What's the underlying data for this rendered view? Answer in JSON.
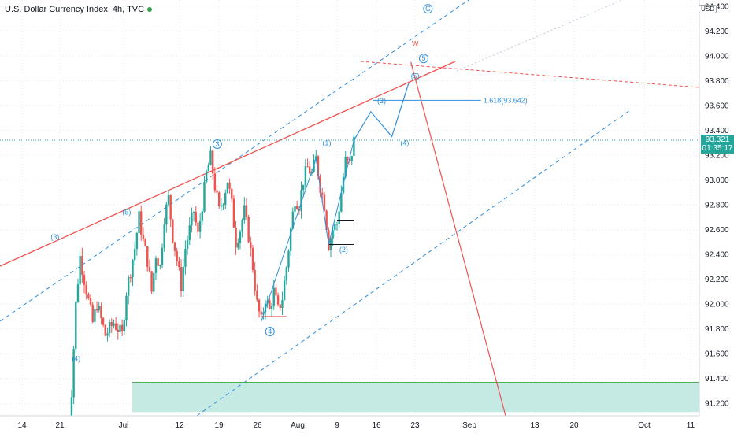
{
  "header": {
    "title": "U.S. Dollar Currency Index, 4h, TVC",
    "currency": "USD",
    "status_dot_color": "#2ba14a"
  },
  "current_price": {
    "value": 93.321,
    "label": "93.321",
    "countdown": "01:35:17",
    "color": "#26a69a"
  },
  "colors": {
    "up": "#26a69a",
    "down": "#ef5350",
    "channel": "#2f8fdc",
    "wave_label": "#2f8fdc",
    "red_trend": "#ef5350",
    "zone_fill": "#c5e9e3",
    "zone_border": "#4caf50"
  },
  "chart_data": {
    "type": "candlestick",
    "title": "U.S. Dollar Currency Index, 4h, TVC",
    "ylim": [
      91.1,
      94.45
    ],
    "y_ticks": [
      "94.400",
      "94.200",
      "94.000",
      "93.800",
      "93.600",
      "93.400",
      "93.200",
      "93.000",
      "92.800",
      "92.600",
      "92.400",
      "92.200",
      "92.000",
      "91.800",
      "91.600",
      "91.400",
      "91.200"
    ],
    "x_ticks": [
      "14",
      "21",
      "Jul",
      "12",
      "19",
      "26",
      "Aug",
      "9",
      "16",
      "23",
      "Sep",
      "13",
      "20",
      "Oct",
      "11"
    ],
    "price_path": [
      [
        16,
        90.9
      ],
      [
        17,
        91.3
      ],
      [
        18,
        92.0
      ],
      [
        19,
        92.38
      ],
      [
        20,
        92.2
      ],
      [
        22,
        91.85
      ],
      [
        23,
        92.0
      ],
      [
        25,
        91.75
      ],
      [
        27,
        91.85
      ],
      [
        29,
        91.75
      ],
      [
        30,
        92.1
      ],
      [
        32,
        92.45
      ],
      [
        33,
        92.7
      ],
      [
        34,
        92.5
      ],
      [
        35,
        92.35
      ],
      [
        36,
        92.1
      ],
      [
        37,
        92.4
      ],
      [
        38,
        92.3
      ],
      [
        39,
        92.7
      ],
      [
        40,
        92.85
      ],
      [
        41,
        92.55
      ],
      [
        42,
        92.35
      ],
      [
        43,
        92.15
      ],
      [
        44,
        92.45
      ],
      [
        45,
        92.6
      ],
      [
        46,
        92.75
      ],
      [
        47,
        92.55
      ],
      [
        48,
        92.8
      ],
      [
        49,
        93.05
      ],
      [
        50,
        93.18
      ],
      [
        51,
        92.95
      ],
      [
        52,
        92.75
      ],
      [
        53,
        92.85
      ],
      [
        54,
        93.0
      ],
      [
        55,
        92.8
      ],
      [
        56,
        92.5
      ],
      [
        57,
        92.6
      ],
      [
        58,
        92.75
      ],
      [
        59,
        92.55
      ],
      [
        60,
        92.3
      ],
      [
        61,
        92.0
      ],
      [
        62,
        91.86
      ],
      [
        63,
        92.05
      ],
      [
        64,
        91.95
      ],
      [
        65,
        92.1
      ],
      [
        66,
        91.95
      ],
      [
        67,
        92.05
      ],
      [
        68,
        92.3
      ],
      [
        69,
        92.6
      ],
      [
        70,
        92.85
      ],
      [
        71,
        92.8
      ],
      [
        72,
        93.0
      ],
      [
        73,
        93.1
      ],
      [
        74,
        93.05
      ],
      [
        75,
        93.17
      ],
      [
        76,
        92.95
      ],
      [
        77,
        92.8
      ],
      [
        78,
        92.48
      ],
      [
        79,
        92.6
      ],
      [
        80,
        92.65
      ],
      [
        81,
        92.9
      ],
      [
        82,
        93.15
      ],
      [
        83,
        93.12
      ],
      [
        84,
        93.32
      ]
    ],
    "projection": {
      "blue_path": [
        [
          84,
          93.32
        ],
        [
          88,
          93.55
        ],
        [
          93,
          93.35
        ],
        [
          97,
          93.78
        ]
      ],
      "red_path": [
        [
          97.5,
          93.95
        ],
        [
          120,
          91.1
        ]
      ]
    },
    "fib_level": {
      "label": "1.618(93.642)",
      "value": 93.642,
      "x_from": 80,
      "x_to": 102
    },
    "support_lines": [
      {
        "value": 92.67,
        "x_from": 80,
        "x_to": 84
      },
      {
        "value": 92.48,
        "x_from": 78,
        "x_to": 84
      },
      {
        "value": 91.9,
        "x_from": 62,
        "x_to": 68
      }
    ],
    "zone": {
      "y_from": 91.13,
      "y_to": 91.37,
      "x_from": 28
    },
    "wave_labels": [
      {
        "text": "(3)",
        "x": 12.5,
        "y": 92.52,
        "circled": false
      },
      {
        "text": "(4)",
        "x": 17.5,
        "y": 91.54,
        "circled": false
      },
      {
        "text": "(5)",
        "x": 29.5,
        "y": 92.72,
        "circled": false
      },
      {
        "text": "3",
        "x": 51,
        "y": 93.27,
        "circled": true
      },
      {
        "text": "4",
        "x": 63.5,
        "y": 91.76,
        "circled": true
      },
      {
        "text": "(1)",
        "x": 77,
        "y": 93.28,
        "circled": false
      },
      {
        "text": "(2)",
        "x": 81,
        "y": 92.42,
        "circled": false
      },
      {
        "text": "(3)",
        "x": 90,
        "y": 93.62,
        "circled": false
      },
      {
        "text": "(4)",
        "x": 95.5,
        "y": 93.28,
        "circled": false
      },
      {
        "text": "(5)",
        "x": 98,
        "y": 93.82,
        "circled": false
      },
      {
        "text": "5",
        "x": 100,
        "y": 93.96,
        "circled": true
      },
      {
        "text": "C",
        "x": 101,
        "y": 94.36,
        "circled": true
      },
      {
        "text": "W",
        "x": 98,
        "y": 94.08,
        "circled": false,
        "red": true
      }
    ]
  }
}
